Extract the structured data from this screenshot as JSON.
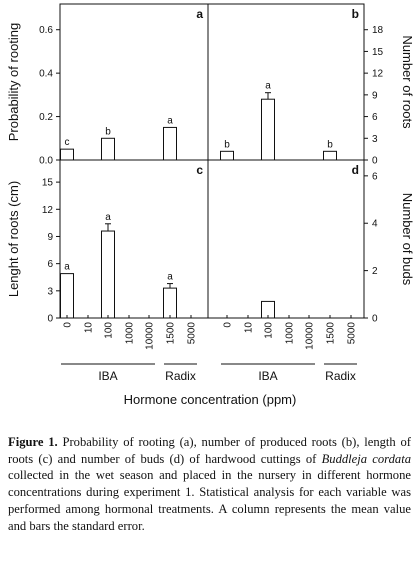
{
  "chart_data": {
    "type": "bar",
    "x_categories": [
      "0",
      "10",
      "100",
      "1000",
      "10000",
      "1500",
      "5000"
    ],
    "group_labels": [
      "IBA",
      "Radix"
    ],
    "xlabel": "Hormone concentration (ppm)",
    "panels": [
      {
        "id": "a",
        "ylabel": "Probability of rooting",
        "yaxis_side": "left",
        "ylim": [
          0,
          0.7
        ],
        "yticks": [
          "0.0",
          "0.2",
          "0.4",
          "0.6"
        ],
        "values": [
          0.05,
          null,
          0.1,
          null,
          null,
          0.15,
          null
        ],
        "errors": [
          0,
          null,
          0,
          null,
          null,
          0,
          null
        ],
        "letters": [
          "c",
          "",
          "b",
          "",
          "",
          "a",
          ""
        ]
      },
      {
        "id": "b",
        "ylabel": "Number of roots",
        "yaxis_side": "right",
        "ylim": [
          0,
          21
        ],
        "yticks": [
          "0",
          "3",
          "6",
          "9",
          "12",
          "15",
          "18"
        ],
        "values": [
          1.2,
          null,
          8.4,
          null,
          null,
          1.2,
          null
        ],
        "errors": [
          0,
          null,
          0.9,
          null,
          null,
          0,
          null
        ],
        "letters": [
          "b",
          "",
          "a",
          "",
          "",
          "b",
          ""
        ]
      },
      {
        "id": "c",
        "ylabel": "Lenght of roots (cm)",
        "yaxis_side": "left",
        "ylim": [
          0,
          17
        ],
        "yticks": [
          "0",
          "3",
          "6",
          "9",
          "12",
          "15"
        ],
        "values": [
          4.9,
          null,
          9.6,
          null,
          null,
          3.3,
          null
        ],
        "errors": [
          0,
          null,
          0.8,
          null,
          null,
          0.5,
          null
        ],
        "letters": [
          "a",
          "",
          "a",
          "",
          "",
          "a",
          ""
        ]
      },
      {
        "id": "d",
        "ylabel": "Number of buds",
        "yaxis_side": "right",
        "ylim": [
          0,
          6.5
        ],
        "yticks": [
          "0",
          "2",
          "4",
          "6"
        ],
        "values": [
          null,
          null,
          0.7,
          null,
          null,
          null,
          null
        ],
        "errors": [
          null,
          null,
          0,
          null,
          null,
          null,
          null
        ],
        "letters": [
          "",
          "",
          "",
          "",
          "",
          "",
          ""
        ]
      }
    ]
  },
  "caption": {
    "label": "Figure 1.",
    "part1": " Probability of rooting (a), number of produced roots (b), length of roots  (c) and number of buds (d) of hardwood cuttings of ",
    "species": "Buddleja cordata",
    "part2": " collected in the wet season and placed in the nursery in different hormone concentrations during experiment 1. Statistical analysis for each variable was performed among hormonal treatments. A column represents the mean value and bars the standard error."
  }
}
